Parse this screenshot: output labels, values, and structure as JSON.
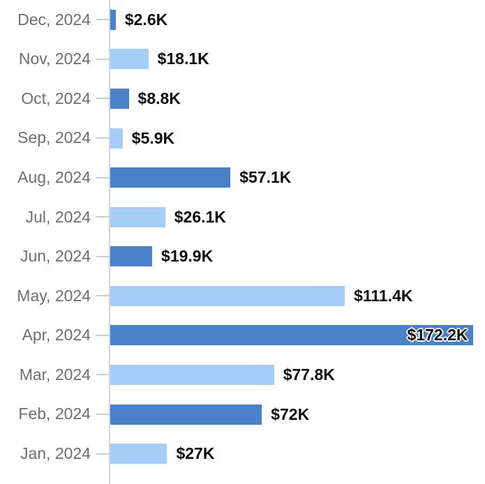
{
  "chart_data": {
    "type": "bar",
    "orientation": "horizontal",
    "title": "",
    "xlabel": "",
    "ylabel": "",
    "xlim": [
      0,
      178
    ],
    "values_unit": "USD thousands",
    "grid": false,
    "legend": false,
    "categories": [
      "Dec, 2024",
      "Nov, 2024",
      "Oct, 2024",
      "Sep, 2024",
      "Aug, 2024",
      "Jul, 2024",
      "Jun, 2024",
      "May, 2024",
      "Apr, 2024",
      "Mar, 2024",
      "Feb, 2024",
      "Jan, 2024"
    ],
    "values": [
      2.6,
      18.1,
      8.8,
      5.9,
      57.1,
      26.1,
      19.9,
      111.4,
      172.2,
      77.8,
      72,
      27
    ],
    "value_labels": [
      "$2.6K",
      "$18.1K",
      "$8.8K",
      "$5.9K",
      "$57.1K",
      "$26.1K",
      "$19.9K",
      "$111.4K",
      "$172.2K",
      "$77.8K",
      "$72K",
      "$27K"
    ],
    "bar_tones": [
      "dark",
      "light",
      "dark",
      "light",
      "dark",
      "light",
      "dark",
      "light",
      "dark",
      "light",
      "dark",
      "light"
    ],
    "value_label_inside": [
      false,
      false,
      false,
      false,
      false,
      false,
      false,
      false,
      true,
      false,
      false,
      false
    ],
    "colors": {
      "bar_dark": "#4a81c9",
      "bar_light": "#a5cdf6",
      "axis_line": "#ccd5e8",
      "tick": "#c4cdde",
      "category_text": "#6e6e6e",
      "value_text": "#0b0b0b"
    }
  }
}
